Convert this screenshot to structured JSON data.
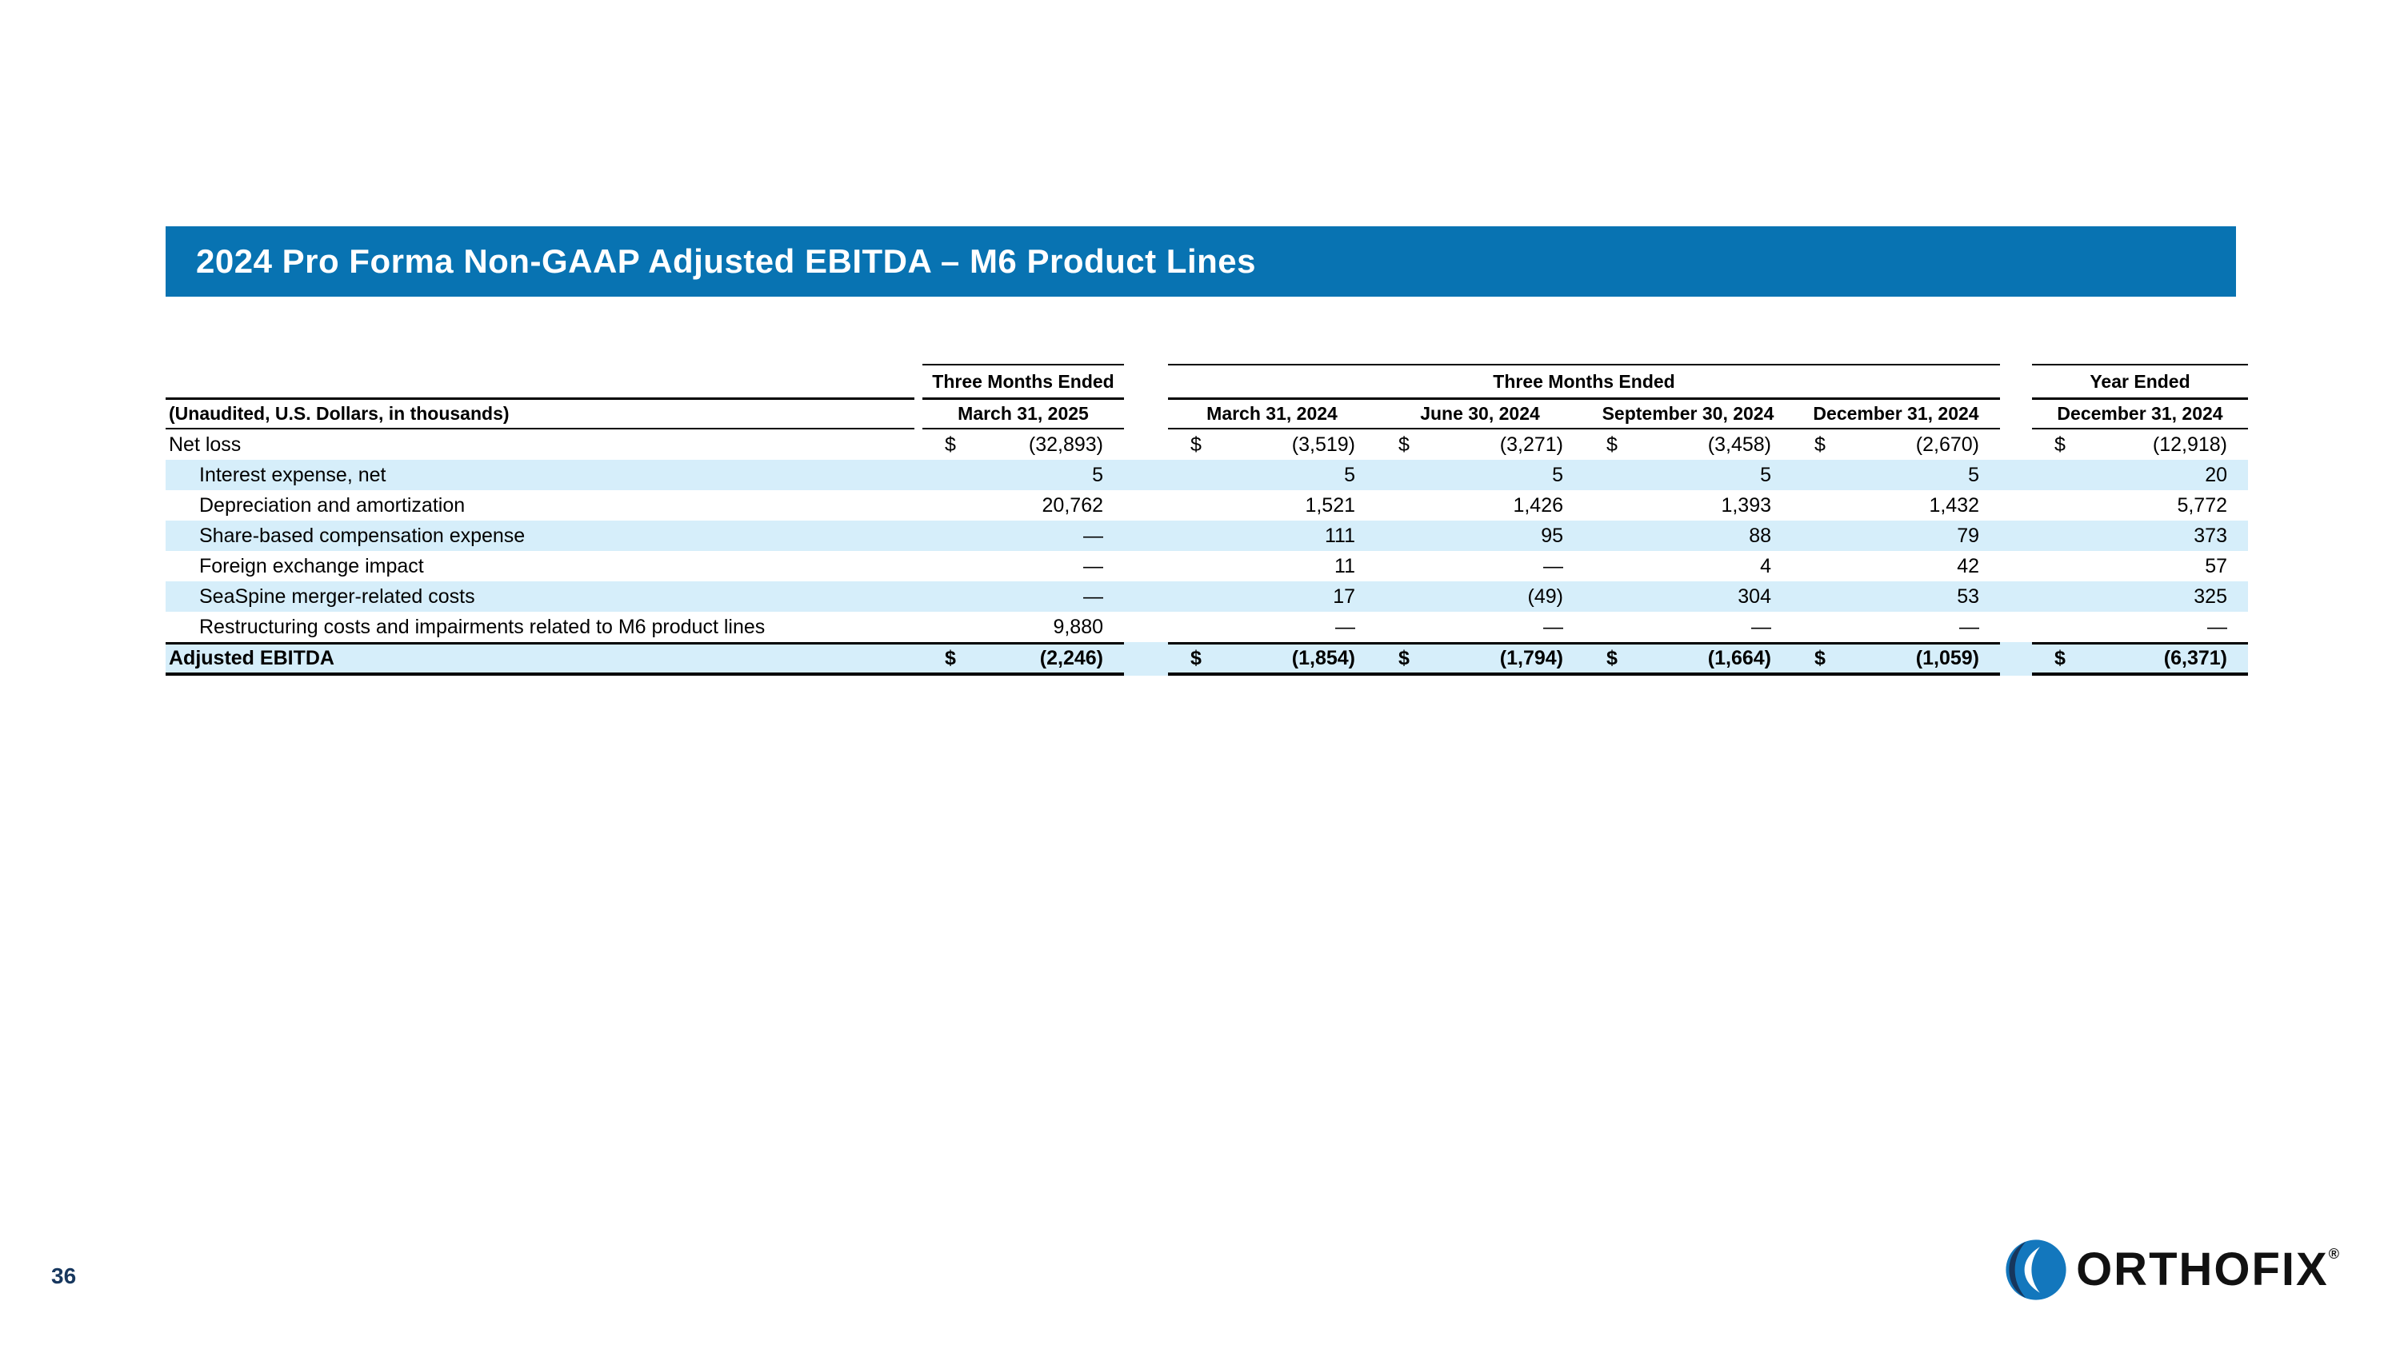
{
  "slide": {
    "title": "2024 Pro Forma Non-GAAP Adjusted EBITDA – M6 Product Lines",
    "page_number": "36",
    "logo_text": "ORTHOFIX",
    "logo_reg": "®"
  },
  "colors": {
    "title_bar_blue": "#0873b2",
    "row_highlight_blue": "#d6eefa",
    "page_number_navy": "#17375e",
    "logo_blue": "#1377bd",
    "logo_navy": "#17365c",
    "text_black": "#000000"
  },
  "table": {
    "note": "(Unaudited, U.S. Dollars, in thousands)",
    "col_groups": [
      {
        "label": "Three Months Ended",
        "span": 1
      },
      {
        "label": "Three Months Ended",
        "span": 4
      },
      {
        "label": "Year Ended",
        "span": 1
      }
    ],
    "columns": [
      "March 31, 2025",
      "March 31, 2024",
      "June 30, 2024",
      "September 30, 2024",
      "December 31, 2024",
      "December 31, 2024"
    ],
    "rows": [
      {
        "label": "Net loss",
        "indent": false,
        "dollar": true,
        "bold": false,
        "total": false,
        "highlight": false,
        "values": [
          "(32,893)",
          "(3,519)",
          "(3,271)",
          "(3,458)",
          "(2,670)",
          "(12,918)"
        ]
      },
      {
        "label": "Interest expense, net",
        "indent": true,
        "dollar": false,
        "bold": false,
        "total": false,
        "highlight": true,
        "values": [
          "5",
          "5",
          "5",
          "5",
          "5",
          "20"
        ]
      },
      {
        "label": "Depreciation and amortization",
        "indent": true,
        "dollar": false,
        "bold": false,
        "total": false,
        "highlight": false,
        "values": [
          "20,762",
          "1,521",
          "1,426",
          "1,393",
          "1,432",
          "5,772"
        ]
      },
      {
        "label": "Share-based compensation expense",
        "indent": true,
        "dollar": false,
        "bold": false,
        "total": false,
        "highlight": true,
        "values": [
          "—",
          "111",
          "95",
          "88",
          "79",
          "373"
        ]
      },
      {
        "label": "Foreign exchange impact",
        "indent": true,
        "dollar": false,
        "bold": false,
        "total": false,
        "highlight": false,
        "values": [
          "—",
          "11",
          "—",
          "4",
          "42",
          "57"
        ]
      },
      {
        "label": "SeaSpine merger-related costs",
        "indent": true,
        "dollar": false,
        "bold": false,
        "total": false,
        "highlight": true,
        "values": [
          "—",
          "17",
          "(49)",
          "304",
          "53",
          "325"
        ]
      },
      {
        "label": "Restructuring costs and impairments related to M6 product lines",
        "indent": true,
        "dollar": false,
        "bold": false,
        "total": false,
        "highlight": false,
        "values": [
          "9,880",
          "—",
          "—",
          "—",
          "—",
          "—"
        ]
      },
      {
        "label": "Adjusted EBITDA",
        "indent": false,
        "dollar": true,
        "bold": true,
        "total": true,
        "highlight": true,
        "values": [
          "(2,246)",
          "(1,854)",
          "(1,794)",
          "(1,664)",
          "(1,059)",
          "(6,371)"
        ]
      }
    ]
  }
}
